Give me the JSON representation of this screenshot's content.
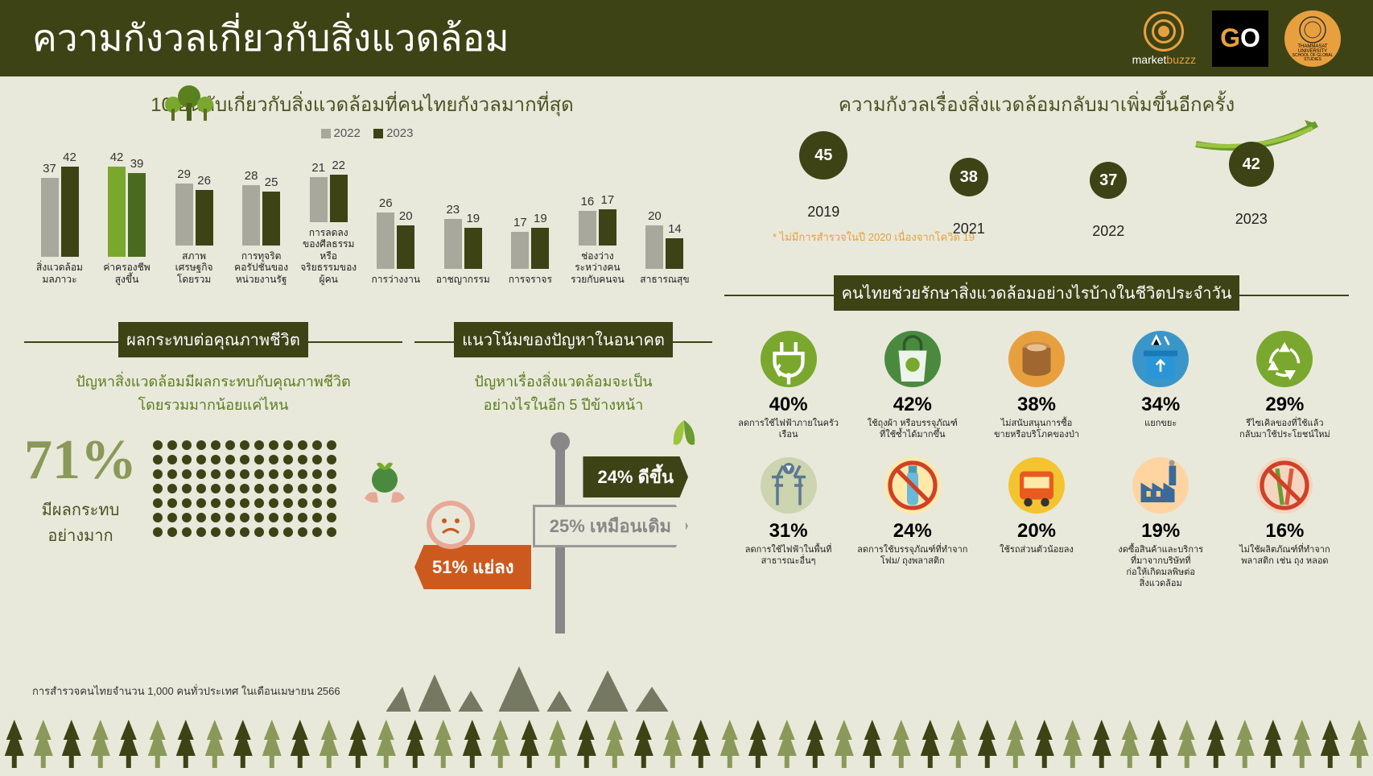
{
  "header": {
    "title": "ความกังวลเกี่ยวกับสิ่งแวดล้อม",
    "logo_buzz": "marketbuzzz",
    "logo_uni_line1": "THAMMASAT UNIVERSITY",
    "logo_uni_line2": "SCHOOL OF GLOBAL STUDIES",
    "bg_color": "#3d4315",
    "title_color": "#ffffff"
  },
  "bar_chart": {
    "title": "10 อันดับเกี่ยวกับสิ่งแวดล้อมที่คนไทยกังวลมากที่สุด",
    "legend": {
      "a": "2022",
      "b": "2023"
    },
    "colors": {
      "2022": "#a8a89c",
      "2023": "#3d4315",
      "highlight": "#7aa82e"
    },
    "max_value": 45,
    "categories": [
      {
        "label": "สิ่งแวดล้อม\nมลภาวะ",
        "v2022": 37,
        "v2023": 42
      },
      {
        "label": "ค่าครองชีพ\nสูงขึ้น",
        "v2022": 42,
        "v2023": 39,
        "highlight": true
      },
      {
        "label": "สภาพ\nเศรษฐกิจ\nโดยรวม",
        "v2022": 29,
        "v2023": 26
      },
      {
        "label": "การทุจริต\nคอรัปชั่นของ\nหน่วยงานรัฐ",
        "v2022": 28,
        "v2023": 25
      },
      {
        "label": "การลดลง\nของศีลธรรม\nหรือ\nจริยธรรมของ\nผู้คน",
        "v2022": 21,
        "v2023": 22
      },
      {
        "label": "การว่างงาน",
        "v2022": 26,
        "v2023": 20
      },
      {
        "label": "อาชญากรรม",
        "v2022": 23,
        "v2023": 19
      },
      {
        "label": "การจราจร",
        "v2022": 17,
        "v2023": 19
      },
      {
        "label": "ช่องว่าง\nระหว่างคน\nรวยกับคนจน",
        "v2022": 16,
        "v2023": 17
      },
      {
        "label": "สาธารณสุข",
        "v2022": 20,
        "v2023": 14
      }
    ]
  },
  "trend": {
    "title": "ความกังวลเรื่องสิ่งแวดล้อมกลับมาเพิ่มขึ้นอีกครั้ง",
    "points": [
      {
        "year": "2019",
        "value": 45,
        "size": 60
      },
      {
        "year": "2021",
        "value": 38,
        "size": 48
      },
      {
        "year": "2022",
        "value": 37,
        "size": 46
      },
      {
        "year": "2023",
        "value": 42,
        "size": 56
      }
    ],
    "note": "* ไม่มีการสำรวจในปี 2020 เนื่องจากโควิด 19",
    "circle_color": "#3d4315",
    "arrow_color": "#6b9b2f"
  },
  "qol": {
    "heading": "ผลกระทบต่อคุณภาพชีวิต",
    "subheading": "ปัญหาสิ่งแวดล้อมมีผลกระทบกับคุณภาพชีวิต\nโดยรวมมากน้อยแค่ไหน",
    "percent": "71%",
    "percent_label": "มีผลกระทบ\nอย่างมาก",
    "dot_count": 91,
    "dot_cols": 13,
    "dot_color": "#3d4315",
    "percent_color": "#8a9959"
  },
  "future": {
    "heading": "แนวโน้มของปัญหาในอนาคต",
    "subheading": "ปัญหาเรื่องสิ่งแวดล้อมจะเป็น\nอย่างไรในอีก 5 ปีข้างหน้า",
    "better": {
      "pct": "24%",
      "label": "ดีขึ้น",
      "color": "#3d4315"
    },
    "same": {
      "pct": "25%",
      "label": "เหมือนเดิม",
      "color": "#999999"
    },
    "worse": {
      "pct": "51%",
      "label": "แย่ลง",
      "color": "#cc5a1e"
    }
  },
  "actions": {
    "heading": "คนไทยช่วยรักษาสิ่งแวดล้อมอย่างไรบ้างในชีวิตประจำวัน",
    "items": [
      {
        "pct": "40%",
        "label": "ลดการใช้ไฟฟ้าภายในครัวเรือน",
        "icon": "plug",
        "bg": "#7aa82e"
      },
      {
        "pct": "42%",
        "label": "ใช้ถุงผ้า หรือบรรจุภัณฑ์\nที่ใช้ซ้ำได้มากขึ้น",
        "icon": "bag",
        "bg": "#4a8a3f"
      },
      {
        "pct": "38%",
        "label": "ไม่สนับสนุนการซื้อ\nขายหรือบริโภคของป่า",
        "icon": "log",
        "bg": "#e8a03f"
      },
      {
        "pct": "34%",
        "label": "แยกขยะ",
        "icon": "recycle-bin",
        "bg": "#3a96c8"
      },
      {
        "pct": "29%",
        "label": "รีไซเคิลของที่ใช้แล้ว\nกลับมาใช้ประโยชน์ใหม่",
        "icon": "recycle",
        "bg": "#7aa82e"
      },
      {
        "pct": "31%",
        "label": "ลดการใช้ไฟฟ้าในพื้นที่\nสาธารณะอื่นๆ",
        "icon": "power-line",
        "bg": "#ccd4b0"
      },
      {
        "pct": "24%",
        "label": "ลดการใช้บรรจุภัณฑ์ที่ทำจาก\nโฟม/ ถุงพลาสติก",
        "icon": "no-bottle",
        "bg": "#ffe9a8"
      },
      {
        "pct": "20%",
        "label": "ใช้รถส่วนตัวน้อยลง",
        "icon": "bus",
        "bg": "#f4c430"
      },
      {
        "pct": "19%",
        "label": "งดซื้อสินค้าและบริการ\nที่มาจากบริษัทที่\nก่อให้เกิดมลพิษต่อ\nสิ่งแวดล้อม",
        "icon": "factory",
        "bg": "#ffd4a0"
      },
      {
        "pct": "16%",
        "label": "ไม่ใช้ผลิตภัณฑ์ที่ทำจาก\nพลาสติก เช่น ถุง หลอด",
        "icon": "no-straw",
        "bg": "#f5d5c0"
      }
    ]
  },
  "survey_note": "การสำรวจคนไทยจำนวน 1,000 คนทั่วประเทศ ในเดือนเมษายน 2566",
  "footer": {
    "tree_dark": "#3d4315",
    "tree_light": "#8a9959",
    "count": 48
  }
}
